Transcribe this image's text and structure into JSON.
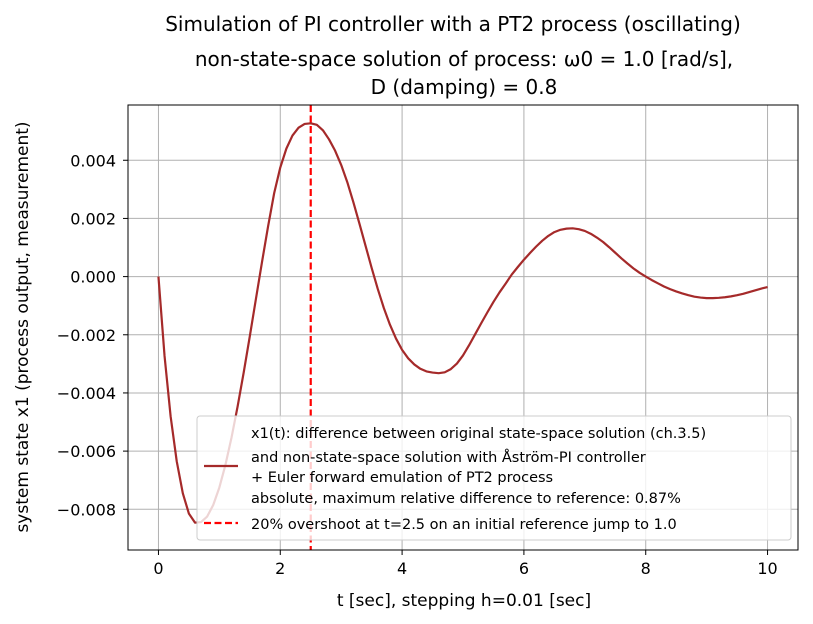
{
  "chart_data": {
    "type": "line",
    "title": "Simulation of PI controller with a PT2 process (oscillating)",
    "subtitle_line1": "non-state-space solution of process: ω0 = 1.0 [rad/s],",
    "subtitle_line2": "D (damping) = 0.8",
    "xlabel": "t [sec], stepping h=0.01 [sec]",
    "ylabel": "system state x1 (process output, measurement)",
    "xlim": [
      -0.5,
      10.5
    ],
    "ylim": [
      -0.0094,
      0.0059
    ],
    "xticks": [
      0,
      2,
      4,
      6,
      8,
      10
    ],
    "xtick_labels": [
      "0",
      "2",
      "4",
      "6",
      "8",
      "10"
    ],
    "yticks": [
      -0.008,
      -0.006,
      -0.004,
      -0.002,
      0.0,
      0.002,
      0.004
    ],
    "ytick_labels": [
      "−0.008",
      "−0.006",
      "−0.004",
      "−0.002",
      "0.000",
      "0.002",
      "0.004"
    ],
    "grid": true,
    "legend_position": "lower-right",
    "series": [
      {
        "name_lines": [
          "x1(t): difference between original state-space solution (ch.3.5)",
          "and non-state-space solution with Åström-PI controller",
          "+ Euler forward emulation of PT2 process",
          "absolute, maximum relative difference to reference: 0.87%"
        ],
        "color": "#a52a2a",
        "style": "solid",
        "x": [
          0.0,
          0.1,
          0.2,
          0.3,
          0.4,
          0.5,
          0.6,
          0.7,
          0.8,
          0.9,
          1.0,
          1.1,
          1.2,
          1.3,
          1.4,
          1.5,
          1.6,
          1.7,
          1.8,
          1.9,
          2.0,
          2.1,
          2.2,
          2.3,
          2.4,
          2.5,
          2.6,
          2.7,
          2.8,
          2.9,
          3.0,
          3.1,
          3.2,
          3.3,
          3.4,
          3.5,
          3.6,
          3.7,
          3.8,
          3.9,
          4.0,
          4.1,
          4.2,
          4.3,
          4.4,
          4.5,
          4.6,
          4.7,
          4.8,
          4.9,
          5.0,
          5.1,
          5.2,
          5.3,
          5.4,
          5.5,
          5.6,
          5.7,
          5.8,
          5.9,
          6.0,
          6.1,
          6.2,
          6.3,
          6.4,
          6.5,
          6.6,
          6.7,
          6.8,
          6.9,
          7.0,
          7.1,
          7.2,
          7.3,
          7.4,
          7.5,
          7.6,
          7.7,
          7.8,
          7.9,
          8.0,
          8.1,
          8.2,
          8.3,
          8.4,
          8.5,
          8.6,
          8.7,
          8.8,
          8.9,
          9.0,
          9.1,
          9.2,
          9.3,
          9.4,
          9.5,
          9.6,
          9.7,
          9.8,
          9.9,
          10.0
        ],
        "y": [
          0.0,
          -0.00273,
          -0.00481,
          -0.00635,
          -0.00745,
          -0.00815,
          -0.00846,
          -0.00844,
          -0.00825,
          -0.00785,
          -0.00725,
          -0.00647,
          -0.00553,
          -0.00446,
          -0.00329,
          -0.00205,
          -0.00077,
          0.0005,
          0.00173,
          0.00287,
          0.00375,
          0.0044,
          0.00485,
          0.00512,
          0.00525,
          0.00527,
          0.00522,
          0.00503,
          0.00472,
          0.00433,
          0.00384,
          0.00325,
          0.00256,
          0.00182,
          0.00106,
          0.0003,
          -0.00042,
          -0.00108,
          -0.00165,
          -0.00213,
          -0.00252,
          -0.00281,
          -0.00302,
          -0.00317,
          -0.00326,
          -0.0033,
          -0.00332,
          -0.00329,
          -0.00318,
          -0.00299,
          -0.00271,
          -0.00236,
          -0.00198,
          -0.0016,
          -0.00123,
          -0.00087,
          -0.00054,
          -0.00024,
          7e-05,
          0.00033,
          0.00058,
          0.00081,
          0.00103,
          0.00123,
          0.0014,
          0.00153,
          0.00161,
          0.00165,
          0.00166,
          0.00163,
          0.00157,
          0.00147,
          0.00134,
          0.00119,
          0.00101,
          0.00082,
          0.00063,
          0.00045,
          0.00028,
          0.00013,
          0.0,
          -0.00012,
          -0.00023,
          -0.00034,
          -0.00043,
          -0.00051,
          -0.00058,
          -0.00064,
          -0.00069,
          -0.00072,
          -0.00074,
          -0.00074,
          -0.00073,
          -0.00071,
          -0.00068,
          -0.00064,
          -0.00059,
          -0.00053,
          -0.00047,
          -0.00041,
          -0.00036
        ]
      }
    ],
    "vlines": [
      {
        "name": "20% overshoot at t=2.5 on an initial reference jump to 1.0",
        "x": 2.5,
        "color": "#ff0000",
        "style": "dashed"
      }
    ]
  }
}
